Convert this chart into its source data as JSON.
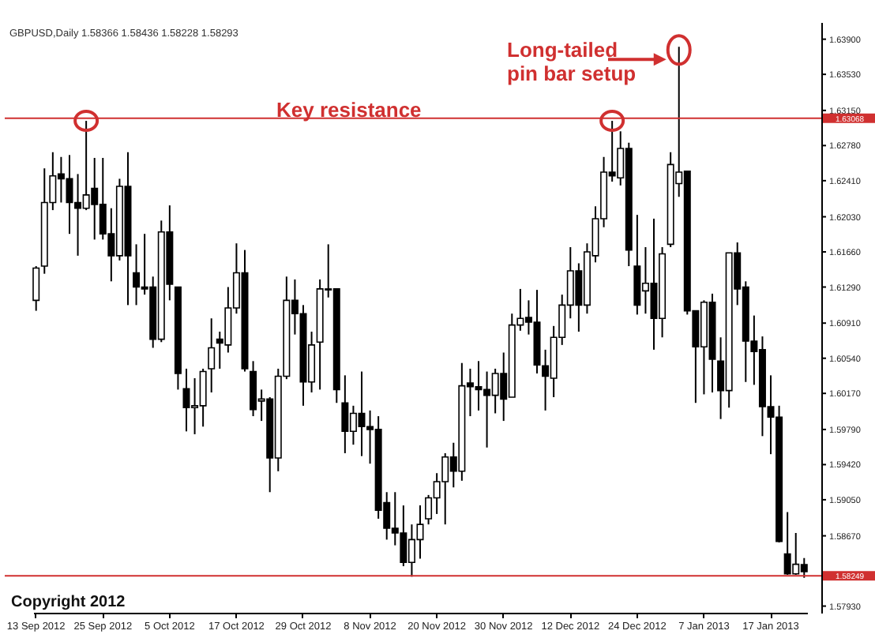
{
  "chart_data": {
    "type": "candlestick",
    "title": "GBPUSD,Daily 1.58366 1.58436 1.58228 1.58293",
    "categories": [
      "13 Sep 2012",
      null,
      null,
      null,
      null,
      null,
      null,
      null,
      "25 Sep 2012",
      null,
      null,
      null,
      null,
      null,
      null,
      null,
      "5 Oct 2012",
      null,
      null,
      null,
      null,
      null,
      null,
      null,
      "17 Oct 2012",
      null,
      null,
      null,
      null,
      null,
      null,
      null,
      "29 Oct 2012",
      null,
      null,
      null,
      null,
      null,
      null,
      null,
      "8 Nov 2012",
      null,
      null,
      null,
      null,
      null,
      null,
      null,
      "20 Nov 2012",
      null,
      null,
      null,
      null,
      null,
      null,
      null,
      "30 Nov 2012",
      null,
      null,
      null,
      null,
      null,
      null,
      null,
      "12 Dec 2012",
      null,
      null,
      null,
      null,
      null,
      null,
      null,
      "24 Dec 2012",
      null,
      null,
      null,
      null,
      null,
      null,
      null,
      "7 Jan 2013",
      null,
      null,
      null,
      null,
      null,
      null,
      null,
      "17 Jan 2013",
      null,
      null,
      null,
      null
    ],
    "ohlc": [
      [
        1.6115,
        1.6151,
        1.6104,
        1.6149
      ],
      [
        1.6151,
        1.6254,
        1.6143,
        1.6218
      ],
      [
        1.6218,
        1.6271,
        1.621,
        1.6246
      ],
      [
        1.6248,
        1.6266,
        1.6218,
        1.6243
      ],
      [
        1.6243,
        1.6268,
        1.6185,
        1.6218
      ],
      [
        1.6218,
        1.6248,
        1.6162,
        1.6212
      ],
      [
        1.6212,
        1.6304,
        1.621,
        1.6226
      ],
      [
        1.6233,
        1.6265,
        1.6179,
        1.6216
      ],
      [
        1.6216,
        1.6265,
        1.6179,
        1.6185
      ],
      [
        1.6185,
        1.6212,
        1.6135,
        1.6162
      ],
      [
        1.6162,
        1.6243,
        1.6157,
        1.6235
      ],
      [
        1.6235,
        1.6271,
        1.611,
        1.6162
      ],
      [
        1.6144,
        1.6174,
        1.611,
        1.6129
      ],
      [
        1.6129,
        1.6185,
        1.6121,
        1.6127
      ],
      [
        1.6129,
        1.614,
        1.6065,
        1.6074
      ],
      [
        1.6074,
        1.6199,
        1.6071,
        1.6187
      ],
      [
        1.6187,
        1.6215,
        1.6115,
        1.6132
      ],
      [
        1.6129,
        1.6129,
        1.6021,
        1.6038
      ],
      [
        1.6022,
        1.6043,
        1.5977,
        1.6002
      ],
      [
        1.6002,
        1.6033,
        1.5974,
        1.6004
      ],
      [
        1.6004,
        1.6043,
        1.5982,
        1.604
      ],
      [
        1.6043,
        1.6096,
        1.6018,
        1.6065
      ],
      [
        1.6074,
        1.6082,
        1.6043,
        1.607
      ],
      [
        1.6068,
        1.6129,
        1.606,
        1.6107
      ],
      [
        1.6107,
        1.6175,
        1.6101,
        1.6144
      ],
      [
        1.6144,
        1.6168,
        1.604,
        1.6043
      ],
      [
        1.604,
        1.6051,
        1.5993,
        1.6
      ],
      [
        1.6009,
        1.6021,
        1.5988,
        1.6011
      ],
      [
        1.6011,
        1.6013,
        1.5913,
        1.5949
      ],
      [
        1.5949,
        1.6043,
        1.5935,
        1.6035
      ],
      [
        1.6035,
        1.614,
        1.6032,
        1.6115
      ],
      [
        1.6115,
        1.6137,
        1.6079,
        1.6101
      ],
      [
        1.6101,
        1.611,
        1.6004,
        1.6029
      ],
      [
        1.6029,
        1.6082,
        1.6018,
        1.6068
      ],
      [
        1.6071,
        1.6137,
        1.6021,
        1.6127
      ],
      [
        1.6126,
        1.6174,
        1.6118,
        1.6127
      ],
      [
        1.6127,
        1.6127,
        1.6007,
        1.6021
      ],
      [
        1.6007,
        1.6036,
        1.5954,
        1.5977
      ],
      [
        1.5977,
        1.6004,
        1.5963,
        1.5996
      ],
      [
        1.5996,
        1.604,
        1.5951,
        1.5982
      ],
      [
        1.5982,
        1.5999,
        1.5943,
        1.5979
      ],
      [
        1.5979,
        1.5993,
        1.5885,
        1.5894
      ],
      [
        1.5902,
        1.5913,
        1.5863,
        1.5875
      ],
      [
        1.5875,
        1.5913,
        1.5857,
        1.587
      ],
      [
        1.587,
        1.5899,
        1.5835,
        1.5839
      ],
      [
        1.5839,
        1.5879,
        1.5824,
        1.5863
      ],
      [
        1.5863,
        1.5899,
        1.5843,
        1.5879
      ],
      [
        1.5885,
        1.591,
        1.5879,
        1.5907
      ],
      [
        1.5907,
        1.5933,
        1.589,
        1.5924
      ],
      [
        1.5924,
        1.5954,
        1.5879,
        1.595
      ],
      [
        1.595,
        1.5965,
        1.5918,
        1.5935
      ],
      [
        1.5935,
        1.6049,
        1.5925,
        1.6025
      ],
      [
        1.6028,
        1.6043,
        1.5993,
        1.6024
      ],
      [
        1.6024,
        1.6051,
        1.5999,
        1.6021
      ],
      [
        1.6021,
        1.604,
        1.596,
        1.6015
      ],
      [
        1.6015,
        1.6043,
        1.5996,
        1.6038
      ],
      [
        1.6038,
        1.606,
        1.5988,
        1.6011
      ],
      [
        1.6013,
        1.6101,
        1.6013,
        1.6089
      ],
      [
        1.6089,
        1.6127,
        1.6083,
        1.6096
      ],
      [
        1.6097,
        1.6115,
        1.6079,
        1.6092
      ],
      [
        1.6092,
        1.6126,
        1.6038,
        1.6047
      ],
      [
        1.6046,
        1.6063,
        1.5999,
        1.6035
      ],
      [
        1.6033,
        1.6088,
        1.6013,
        1.6076
      ],
      [
        1.6076,
        1.6121,
        1.6068,
        1.611
      ],
      [
        1.611,
        1.6171,
        1.6096,
        1.6146
      ],
      [
        1.6146,
        1.6154,
        1.6082,
        1.611
      ],
      [
        1.611,
        1.6175,
        1.6101,
        1.6166
      ],
      [
        1.6162,
        1.6214,
        1.6155,
        1.6201
      ],
      [
        1.6201,
        1.6266,
        1.6192,
        1.625
      ],
      [
        1.625,
        1.6304,
        1.624,
        1.6246
      ],
      [
        1.6244,
        1.6293,
        1.6236,
        1.6275
      ],
      [
        1.6275,
        1.6281,
        1.6151,
        1.6168
      ],
      [
        1.6151,
        1.6205,
        1.61,
        1.611
      ],
      [
        1.6125,
        1.6171,
        1.6101,
        1.6133
      ],
      [
        1.6133,
        1.6201,
        1.6063,
        1.6096
      ],
      [
        1.6096,
        1.6171,
        1.6076,
        1.6164
      ],
      [
        1.6174,
        1.6271,
        1.6171,
        1.6258
      ],
      [
        1.6238,
        1.6382,
        1.6224,
        1.625
      ],
      [
        1.6251,
        1.6251,
        1.61,
        1.6104
      ],
      [
        1.6104,
        1.6104,
        1.6007,
        1.6066
      ],
      [
        1.6066,
        1.6115,
        1.6016,
        1.6113
      ],
      [
        1.6113,
        1.6122,
        1.6018,
        1.6053
      ],
      [
        1.6051,
        1.6076,
        1.599,
        1.602
      ],
      [
        1.602,
        1.6165,
        1.6002,
        1.6165
      ],
      [
        1.6165,
        1.6176,
        1.611,
        1.6127
      ],
      [
        1.6129,
        1.6135,
        1.6029,
        1.6072
      ],
      [
        1.6072,
        1.6099,
        1.6026,
        1.6061
      ],
      [
        1.6063,
        1.6077,
        1.5972,
        1.6003
      ],
      [
        1.6003,
        1.6036,
        1.5953,
        1.5992
      ],
      [
        1.5992,
        1.6004,
        1.586,
        1.5861
      ],
      [
        1.5848,
        1.5892,
        1.5826,
        1.5827
      ],
      [
        1.5827,
        1.587,
        1.5826,
        1.5837
      ],
      [
        1.58366,
        1.58436,
        1.58228,
        1.58293
      ]
    ],
    "ylim": [
      1.5786,
      1.6408
    ],
    "yticks": [
      {
        "value": 1.639,
        "label": "1.63900"
      },
      {
        "value": 1.6353,
        "label": "1.63530"
      },
      {
        "value": 1.6315,
        "label": "1.63150"
      },
      {
        "value": 1.6278,
        "label": "1.62780"
      },
      {
        "value": 1.6241,
        "label": "1.62410"
      },
      {
        "value": 1.6203,
        "label": "1.62030"
      },
      {
        "value": 1.6166,
        "label": "1.61660"
      },
      {
        "value": 1.6129,
        "label": "1.61290"
      },
      {
        "value": 1.6091,
        "label": "1.60910"
      },
      {
        "value": 1.6054,
        "label": "1.60540"
      },
      {
        "value": 1.6017,
        "label": "1.60170"
      },
      {
        "value": 1.5979,
        "label": "1.59790"
      },
      {
        "value": 1.5942,
        "label": "1.59420"
      },
      {
        "value": 1.5905,
        "label": "1.59050"
      },
      {
        "value": 1.5867,
        "label": "1.58670"
      },
      {
        "value": 1.5793,
        "label": "1.57930"
      }
    ],
    "ref_lines": [
      {
        "axis": "y",
        "value": 1.63068,
        "label": "1.63068",
        "color": "#d03030"
      },
      {
        "axis": "y",
        "value": 1.58249,
        "label": "1.58249",
        "color": "#d03030"
      }
    ],
    "annotations": [
      "Key resistance",
      "Long-tailed pin bar setup",
      "Copyright 2012"
    ]
  }
}
